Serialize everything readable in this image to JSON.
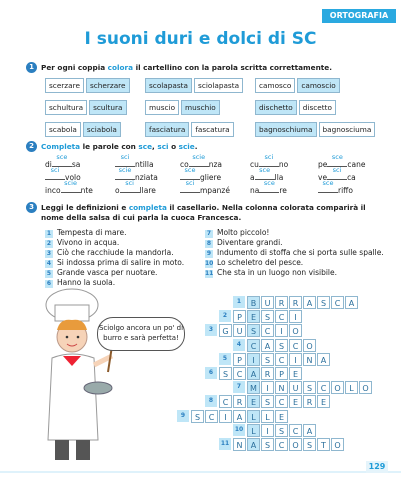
{
  "header": {
    "tag": "ORTOGRAFIA",
    "title": "I suoni duri e dolci di SC"
  },
  "exercise1": {
    "number": 1,
    "instruction": [
      "Per ogni coppia ",
      "colora",
      " il cartellino con la parola scritta correttamente."
    ],
    "pairs": [
      {
        "words": [
          "scerzare",
          "scherzare"
        ],
        "correct": 1
      },
      {
        "words": [
          "scolapasta",
          "sciolapasta"
        ],
        "correct": 0
      },
      {
        "words": [
          "camosco",
          "camoscio"
        ],
        "correct": 1
      },
      {
        "words": [
          "schultura",
          "scultura"
        ],
        "correct": 1
      },
      {
        "words": [
          "muscio",
          "muschio"
        ],
        "correct": 1
      },
      {
        "words": [
          "dischetto",
          "discetto"
        ],
        "correct": 0
      },
      {
        "words": [
          "scabola",
          "sciabola"
        ],
        "correct": 1
      },
      {
        "words": [
          "fasciatura",
          "fascatura"
        ],
        "correct": 0
      },
      {
        "words": [
          "bagnoschiuma",
          "bagnosciuma"
        ],
        "correct": 0
      }
    ]
  },
  "exercise2": {
    "number": 2,
    "instruction": [
      "Completa",
      " le parole con ",
      "sce",
      ", ",
      "sci",
      " o ",
      "scie",
      "."
    ],
    "items": [
      {
        "pre": "di",
        "fill": "sce",
        "post": "sa"
      },
      {
        "fill": "sci",
        "post": "ntilla"
      },
      {
        "pre": "co",
        "fill": "scie",
        "post": "nza"
      },
      {
        "pre": "cu",
        "fill": "sci",
        "post": "no"
      },
      {
        "pre": "pe",
        "fill": "sce",
        "post": "cane"
      },
      {
        "fill": "sci",
        "post": "volo"
      },
      {
        "fill": "scie",
        "post": "nziata"
      },
      {
        "fill": "sce",
        "post": "gliere"
      },
      {
        "pre": "a",
        "fill": "sce",
        "post": "lla"
      },
      {
        "pre": "ve",
        "fill": "sci",
        "post": "ca"
      },
      {
        "pre": "inco",
        "fill": "scie",
        "post": "nte"
      },
      {
        "pre": "o",
        "fill": "sci",
        "post": "llare"
      },
      {
        "fill": "sci",
        "post": "mpanzé"
      },
      {
        "pre": "na",
        "fill": "sce",
        "post": "re"
      },
      {
        "fill": "sce",
        "post": "riffo"
      }
    ]
  },
  "exercise3": {
    "number": 3,
    "instruction": [
      "Leggi le definizioni e ",
      "completa",
      " il casellario. Nella colonna colorata comparirà il nome della salsa di cui parla la cuoca Francesca."
    ],
    "definitions": [
      {
        "n": 1,
        "text": "Tempesta di mare."
      },
      {
        "n": 2,
        "text": "Vivono in acqua."
      },
      {
        "n": 3,
        "text": "Ciò che racchiude la mandorla."
      },
      {
        "n": 4,
        "text": "Si indossa prima di salire in moto."
      },
      {
        "n": 5,
        "text": "Grande vasca per nuotare."
      },
      {
        "n": 6,
        "text": "Hanno la suola."
      },
      {
        "n": 7,
        "text": "Molto piccolo!"
      },
      {
        "n": 8,
        "text": "Diventare grandi."
      },
      {
        "n": 9,
        "text": "Indumento di stoffa che si porta sulle spalle."
      },
      {
        "n": 10,
        "text": "Lo scheletro del pesce."
      },
      {
        "n": 11,
        "text": "Che sta in un luogo non visibile."
      }
    ],
    "speech": "Sciolgo ancora un po' di burro e sarà perfetta!",
    "crossword": [
      {
        "n": 1,
        "letters": [
          "B",
          "U",
          "R",
          "R",
          "A",
          "S",
          "C",
          "A"
        ]
      },
      {
        "n": 2,
        "letters": [
          "P",
          "E",
          "S",
          "C",
          "I"
        ]
      },
      {
        "n": 3,
        "letters": [
          "G",
          "U",
          "S",
          "C",
          "I",
          "O"
        ]
      },
      {
        "n": 4,
        "letters": [
          "C",
          "A",
          "S",
          "C",
          "O"
        ]
      },
      {
        "n": 5,
        "letters": [
          "P",
          "I",
          "S",
          "C",
          "I",
          "N",
          "A"
        ]
      },
      {
        "n": 6,
        "letters": [
          "S",
          "C",
          "A",
          "R",
          "P",
          "E"
        ]
      },
      {
        "n": 7,
        "letters": [
          "M",
          "I",
          "N",
          "U",
          "S",
          "C",
          "O",
          "L",
          "O"
        ]
      },
      {
        "n": 8,
        "letters": [
          "C",
          "R",
          "E",
          "S",
          "C",
          "E",
          "R",
          "E"
        ]
      },
      {
        "n": 9,
        "letters": [
          "S",
          "C",
          "I",
          "A",
          "L",
          "L",
          "E"
        ]
      },
      {
        "n": 10,
        "letters": [
          "L",
          "I",
          "S",
          "C",
          "A"
        ]
      },
      {
        "n": 11,
        "letters": [
          "N",
          "A",
          "S",
          "C",
          "O",
          "S",
          "T",
          "O"
        ]
      }
    ]
  },
  "page_number": 129
}
